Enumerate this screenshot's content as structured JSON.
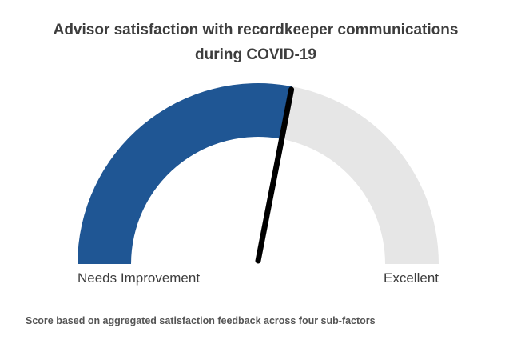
{
  "chart_data": {
    "type": "gauge",
    "title_lines": [
      "Advisor satisfaction with recordkeeper communications",
      "during COVID-19"
    ],
    "min_label": "Needs Improvement",
    "max_label": "Excellent",
    "value_fraction": 0.56,
    "colors": {
      "filled": "#1f5694",
      "track": "#e6e6e6",
      "needle": "#000000"
    }
  },
  "footnote": "Score based on aggregated satisfaction feedback across four sub-factors"
}
